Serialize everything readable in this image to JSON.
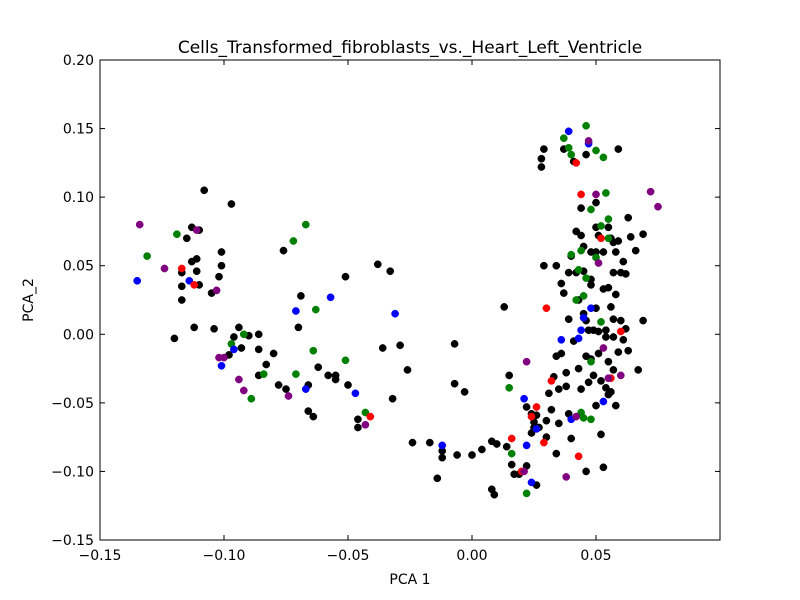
{
  "chart_data": {
    "type": "scatter",
    "title": "Cells_Transformed_fibroblasts_vs._Heart_Left_Ventricle",
    "xlabel": "PCA 1",
    "ylabel": "PCA_2",
    "xlim": [
      -0.15,
      0.1
    ],
    "ylim": [
      -0.15,
      0.2
    ],
    "xticks": [
      -0.15,
      -0.1,
      -0.05,
      0.0,
      0.05
    ],
    "xtick_labels": [
      "−0.15",
      "−0.10",
      "−0.05",
      "0.00",
      "0.05"
    ],
    "yticks": [
      -0.15,
      -0.1,
      -0.05,
      0.0,
      0.05,
      0.1,
      0.15,
      0.2
    ],
    "ytick_labels": [
      "−0.15",
      "−0.10",
      "−0.05",
      "0.00",
      "0.05",
      "0.10",
      "0.15",
      "0.20"
    ],
    "grid": false,
    "legend": "none",
    "colors": {
      "black": "#000000",
      "green": "#008000",
      "blue": "#0000ff",
      "red": "#ff0000",
      "purple": "#800080"
    },
    "series": [
      {
        "color": "black",
        "points": [
          [
            -0.108,
            0.105
          ],
          [
            -0.097,
            0.095
          ],
          [
            -0.113,
            0.078
          ],
          [
            -0.11,
            0.076
          ],
          [
            -0.115,
            0.07
          ],
          [
            -0.101,
            0.06
          ],
          [
            -0.111,
            0.055
          ],
          [
            -0.113,
            0.053
          ],
          [
            -0.101,
            0.05
          ],
          [
            -0.111,
            0.046
          ],
          [
            -0.117,
            0.045
          ],
          [
            -0.102,
            0.042
          ],
          [
            -0.11,
            0.036
          ],
          [
            -0.117,
            0.035
          ],
          [
            -0.105,
            0.03
          ],
          [
            -0.117,
            0.025
          ],
          [
            -0.112,
            0.005
          ],
          [
            -0.104,
            0.004
          ],
          [
            -0.12,
            -0.003
          ],
          [
            -0.094,
            0.005
          ],
          [
            -0.096,
            -0.002
          ],
          [
            -0.09,
            -0.001
          ],
          [
            -0.086,
            0.0
          ],
          [
            -0.093,
            -0.01
          ],
          [
            -0.098,
            -0.015
          ],
          [
            -0.086,
            -0.011
          ],
          [
            -0.08,
            -0.014
          ],
          [
            -0.083,
            -0.022
          ],
          [
            -0.086,
            -0.03
          ],
          [
            -0.078,
            -0.037
          ],
          [
            -0.075,
            -0.04
          ],
          [
            -0.076,
            0.061
          ],
          [
            -0.069,
            0.028
          ],
          [
            -0.07,
            0.005
          ],
          [
            -0.066,
            -0.037
          ],
          [
            -0.062,
            -0.024
          ],
          [
            -0.066,
            -0.056
          ],
          [
            -0.064,
            -0.06
          ],
          [
            -0.058,
            -0.03
          ],
          [
            -0.055,
            -0.03
          ],
          [
            -0.051,
            0.042
          ],
          [
            -0.055,
            -0.033
          ],
          [
            -0.05,
            -0.037
          ],
          [
            -0.046,
            -0.062
          ],
          [
            -0.046,
            -0.068
          ],
          [
            -0.038,
            0.051
          ],
          [
            -0.033,
            0.046
          ],
          [
            -0.036,
            -0.01
          ],
          [
            -0.029,
            -0.008
          ],
          [
            -0.032,
            -0.047
          ],
          [
            -0.026,
            -0.026
          ],
          [
            -0.024,
            -0.079
          ],
          [
            -0.017,
            -0.079
          ],
          [
            -0.014,
            -0.105
          ],
          [
            -0.012,
            -0.085
          ],
          [
            -0.012,
            -0.09
          ],
          [
            -0.007,
            -0.007
          ],
          [
            -0.007,
            -0.036
          ],
          [
            -0.006,
            -0.088
          ],
          [
            -0.003,
            -0.042
          ],
          [
            0.0,
            -0.088
          ],
          [
            0.004,
            -0.084
          ],
          [
            0.008,
            -0.078
          ],
          [
            0.01,
            -0.08
          ],
          [
            0.008,
            -0.113
          ],
          [
            0.009,
            -0.117
          ],
          [
            0.013,
            0.02
          ],
          [
            0.014,
            -0.082
          ],
          [
            0.015,
            -0.03
          ],
          [
            0.016,
            -0.095
          ],
          [
            0.017,
            -0.102
          ],
          [
            0.019,
            -0.102
          ],
          [
            0.022,
            -0.053
          ],
          [
            0.022,
            -0.096
          ],
          [
            0.024,
            -0.058
          ],
          [
            0.024,
            -0.072
          ],
          [
            0.025,
            -0.064
          ],
          [
            0.025,
            -0.068
          ],
          [
            0.026,
            -0.059
          ],
          [
            0.026,
            -0.11
          ],
          [
            0.027,
            -0.068
          ],
          [
            0.028,
            0.128
          ],
          [
            0.028,
            0.122
          ],
          [
            0.029,
            0.135
          ],
          [
            0.029,
            0.05
          ],
          [
            0.03,
            -0.063
          ],
          [
            0.03,
            -0.075
          ],
          [
            0.031,
            -0.043
          ],
          [
            0.032,
            -0.055
          ],
          [
            0.033,
            -0.031
          ],
          [
            0.034,
            -0.016
          ],
          [
            0.034,
            0.05
          ],
          [
            0.035,
            -0.04
          ],
          [
            0.035,
            -0.065
          ],
          [
            0.036,
            0.037
          ],
          [
            0.037,
            0.135
          ],
          [
            0.037,
            0.03
          ],
          [
            0.038,
            -0.028
          ],
          [
            0.038,
            -0.038
          ],
          [
            0.039,
            0.011
          ],
          [
            0.039,
            0.045
          ],
          [
            0.04,
            0.057
          ],
          [
            0.04,
            -0.076
          ],
          [
            0.041,
            0.126
          ],
          [
            0.041,
            -0.005
          ],
          [
            0.042,
            0.075
          ],
          [
            0.042,
            0.045
          ],
          [
            0.043,
            0.025
          ],
          [
            0.043,
            -0.025
          ],
          [
            0.044,
            0.092
          ],
          [
            0.044,
            0.072
          ],
          [
            0.044,
            -0.04
          ],
          [
            0.045,
            0.064
          ],
          [
            0.045,
            0.046
          ],
          [
            0.045,
            0.015
          ],
          [
            0.046,
            0.131
          ],
          [
            0.046,
            0.01
          ],
          [
            0.046,
            -0.016
          ],
          [
            0.047,
            0.003
          ],
          [
            0.047,
            -0.035
          ],
          [
            0.048,
            0.06
          ],
          [
            0.048,
            0.04
          ],
          [
            0.048,
            -0.018
          ],
          [
            0.049,
            0.003
          ],
          [
            0.049,
            -0.03
          ],
          [
            0.05,
            0.096
          ],
          [
            0.05,
            0.078
          ],
          [
            0.05,
            0.06
          ],
          [
            0.05,
            0.019
          ],
          [
            0.051,
            0.072
          ],
          [
            0.051,
            0.002
          ],
          [
            0.051,
            -0.014
          ],
          [
            0.052,
            -0.034
          ],
          [
            0.052,
            -0.073
          ],
          [
            0.053,
            0.06
          ],
          [
            0.053,
            0.033
          ],
          [
            0.054,
            0.003
          ],
          [
            0.054,
            -0.002
          ],
          [
            0.054,
            -0.039
          ],
          [
            0.055,
            0.078
          ],
          [
            0.055,
            0.034
          ],
          [
            0.055,
            -0.02
          ],
          [
            0.056,
            0.07
          ],
          [
            0.056,
            0.02
          ],
          [
            0.056,
            -0.042
          ],
          [
            0.057,
            0.067
          ],
          [
            0.057,
            0.045
          ],
          [
            0.057,
            0.011
          ],
          [
            0.057,
            -0.026
          ],
          [
            0.058,
            0.06
          ],
          [
            0.058,
            0.029
          ],
          [
            0.059,
            0.135
          ],
          [
            0.059,
            0.068
          ],
          [
            0.059,
            -0.013
          ],
          [
            0.06,
            0.045
          ],
          [
            0.06,
            0.01
          ],
          [
            0.061,
            0.053
          ],
          [
            0.062,
            0.044
          ],
          [
            0.062,
            0.004
          ],
          [
            0.061,
            -0.004
          ],
          [
            0.063,
            -0.012
          ],
          [
            0.063,
            0.085
          ],
          [
            0.064,
            0.071
          ],
          [
            0.066,
            0.061
          ],
          [
            0.067,
            -0.026
          ],
          [
            0.069,
            0.073
          ],
          [
            0.069,
            0.01
          ],
          [
            0.034,
            -0.087
          ],
          [
            0.039,
            -0.058
          ],
          [
            0.05,
            -0.052
          ],
          [
            0.053,
            -0.097
          ],
          [
            0.057,
            -0.002
          ],
          [
            0.055,
            -0.044
          ],
          [
            0.058,
            -0.052
          ],
          [
            0.046,
            -0.1
          ],
          [
            0.048,
            0.036
          ],
          [
            0.036,
            -0.014
          ]
        ]
      },
      {
        "color": "green",
        "points": [
          [
            -0.131,
            0.057
          ],
          [
            -0.119,
            0.073
          ],
          [
            -0.072,
            0.068
          ],
          [
            -0.067,
            0.08
          ],
          [
            -0.063,
            0.018
          ],
          [
            -0.097,
            -0.007
          ],
          [
            -0.092,
            0.0
          ],
          [
            -0.089,
            -0.047
          ],
          [
            -0.084,
            -0.029
          ],
          [
            -0.071,
            -0.029
          ],
          [
            -0.064,
            -0.012
          ],
          [
            -0.051,
            -0.019
          ],
          [
            -0.043,
            -0.057
          ],
          [
            0.015,
            -0.039
          ],
          [
            0.016,
            -0.087
          ],
          [
            0.022,
            -0.116
          ],
          [
            0.037,
            0.143
          ],
          [
            0.039,
            0.136
          ],
          [
            0.04,
            0.131
          ],
          [
            0.04,
            0.058
          ],
          [
            0.042,
            0.025
          ],
          [
            0.043,
            0.047
          ],
          [
            0.044,
            0.061
          ],
          [
            0.045,
            0.028
          ],
          [
            0.046,
            0.152
          ],
          [
            0.046,
            0.041
          ],
          [
            0.048,
            0.091
          ],
          [
            0.048,
            -0.062
          ],
          [
            0.05,
            0.134
          ],
          [
            0.05,
            0.056
          ],
          [
            0.052,
            0.009
          ],
          [
            0.053,
            0.129
          ],
          [
            0.054,
            0.103
          ],
          [
            0.055,
            0.084
          ],
          [
            0.055,
            0.07
          ],
          [
            0.044,
            -0.057
          ],
          [
            0.045,
            -0.061
          ],
          [
            0.052,
            0.079
          ],
          [
            0.048,
            -0.02
          ]
        ]
      },
      {
        "color": "blue",
        "points": [
          [
            -0.135,
            0.039
          ],
          [
            -0.114,
            0.039
          ],
          [
            -0.101,
            -0.023
          ],
          [
            -0.096,
            -0.011
          ],
          [
            -0.071,
            0.017
          ],
          [
            -0.067,
            -0.04
          ],
          [
            -0.057,
            0.027
          ],
          [
            -0.047,
            -0.043
          ],
          [
            -0.031,
            0.015
          ],
          [
            -0.012,
            -0.081
          ],
          [
            0.021,
            -0.047
          ],
          [
            0.022,
            -0.081
          ],
          [
            0.024,
            -0.108
          ],
          [
            0.026,
            -0.069
          ],
          [
            0.036,
            -0.004
          ],
          [
            0.039,
            0.148
          ],
          [
            0.04,
            -0.062
          ],
          [
            0.043,
            -0.003
          ],
          [
            0.044,
            0.003
          ],
          [
            0.045,
            0.012
          ],
          [
            0.047,
            0.139
          ],
          [
            0.048,
            0.019
          ],
          [
            0.053,
            -0.049
          ]
        ]
      },
      {
        "color": "red",
        "points": [
          [
            -0.117,
            0.048
          ],
          [
            -0.112,
            0.036
          ],
          [
            -0.041,
            -0.06
          ],
          [
            0.016,
            -0.076
          ],
          [
            0.02,
            -0.1
          ],
          [
            0.024,
            -0.06
          ],
          [
            0.026,
            -0.053
          ],
          [
            0.029,
            -0.079
          ],
          [
            0.03,
            0.019
          ],
          [
            0.032,
            -0.034
          ],
          [
            0.042,
            0.125
          ],
          [
            0.043,
            -0.089
          ],
          [
            0.052,
            0.07
          ],
          [
            0.056,
            -0.032
          ],
          [
            0.06,
            0.002
          ],
          [
            0.044,
            0.102
          ]
        ]
      },
      {
        "color": "purple",
        "points": [
          [
            -0.134,
            0.08
          ],
          [
            -0.124,
            0.048
          ],
          [
            -0.111,
            0.076
          ],
          [
            -0.103,
            0.032
          ],
          [
            -0.102,
            -0.017
          ],
          [
            -0.1,
            -0.017
          ],
          [
            -0.094,
            -0.033
          ],
          [
            -0.092,
            -0.041
          ],
          [
            -0.074,
            -0.045
          ],
          [
            -0.043,
            -0.066
          ],
          [
            0.021,
            -0.1
          ],
          [
            0.022,
            -0.02
          ],
          [
            0.038,
            -0.104
          ],
          [
            0.042,
            -0.06
          ],
          [
            0.047,
            0.141
          ],
          [
            0.05,
            0.102
          ],
          [
            0.051,
            0.052
          ],
          [
            0.053,
            -0.01
          ],
          [
            0.055,
            -0.032
          ],
          [
            0.06,
            -0.03
          ],
          [
            0.072,
            0.104
          ],
          [
            0.075,
            0.093
          ]
        ]
      }
    ]
  }
}
